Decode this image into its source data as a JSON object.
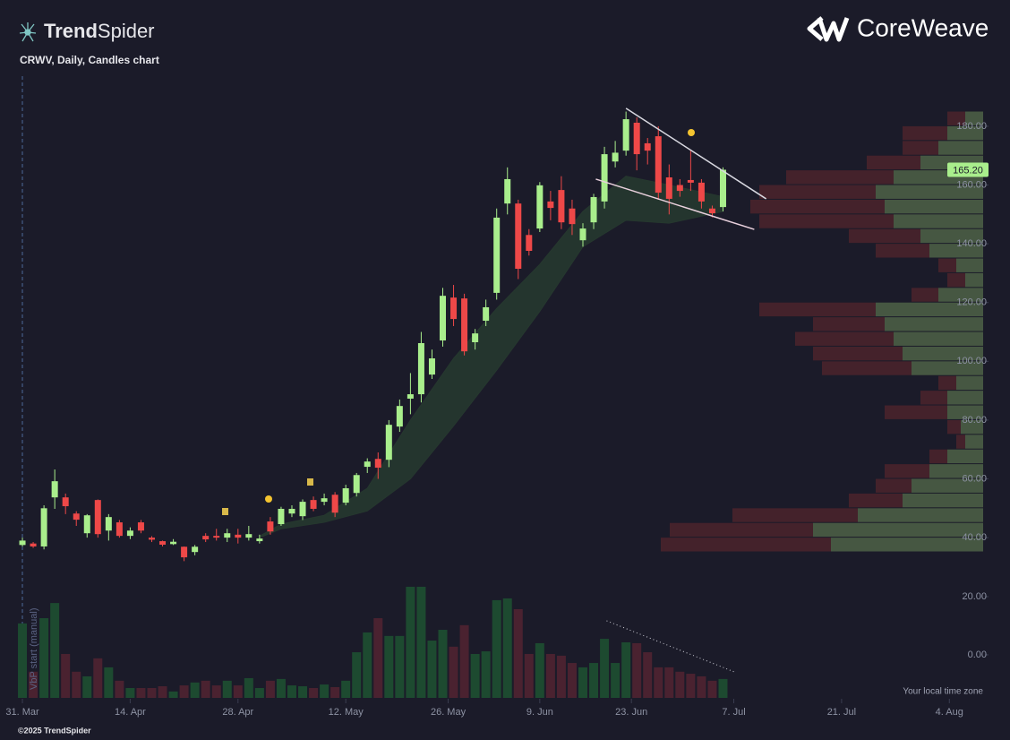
{
  "header": {
    "brand_bold": "Trend",
    "brand_light": "Spider",
    "chart_label": "CRWV, Daily, Candles chart",
    "company": "CoreWeave"
  },
  "footer": {
    "copyright": "©2025 TrendSpider",
    "timezone": "Your local time zone"
  },
  "chart_data": [
    {
      "type": "candlestick",
      "annotation": "VbP start (manual)",
      "up_color": "#a9ee8c",
      "down_color": "#ee4848",
      "x": [
        0,
        1,
        2,
        3,
        4,
        5,
        6,
        7,
        8,
        9,
        10,
        11,
        12,
        13,
        14,
        15,
        16,
        17,
        18,
        19,
        20,
        21,
        22,
        23,
        24,
        25,
        26,
        27,
        28,
        29,
        30,
        31,
        32,
        33,
        34,
        35,
        36,
        37,
        38,
        39,
        40,
        41,
        42,
        43,
        44,
        45,
        46,
        47,
        48,
        49,
        50,
        51,
        52,
        53,
        54,
        55,
        56,
        57,
        58,
        59,
        60,
        61,
        62,
        63,
        64,
        65
      ],
      "open": [
        37.5,
        38,
        37,
        53.7,
        53.7,
        48.2,
        41.5,
        52.8,
        42.4,
        45.2,
        40.6,
        45.2,
        40,
        38.8,
        37.8,
        36.9,
        35.1,
        40.6,
        40.6,
        40,
        41,
        40,
        38.8,
        45.5,
        44.6,
        48.2,
        47.3,
        52.8,
        52.2,
        54.6,
        51.9,
        55.2,
        64.1,
        66.8,
        66.5,
        77.8,
        87.3,
        88.8,
        95.5,
        107.1,
        121.7,
        121.4,
        106.5,
        113.8,
        123.3,
        153.7,
        153.7,
        143,
        145.2,
        154.4,
        158.3,
        152,
        141.2,
        147.3,
        154.4,
        168,
        171.7,
        181.2,
        174.2,
        176.6,
        162.6,
        160,
        161.7,
        160.8,
        152,
        152.5
      ],
      "high": [
        40,
        38.5,
        51,
        63.2,
        55,
        49,
        48,
        53,
        48,
        46,
        43.5,
        46,
        40.5,
        39,
        39.5,
        37,
        37.5,
        41.5,
        43,
        43,
        43,
        44,
        41,
        47,
        50.5,
        51,
        53,
        54,
        55,
        55.5,
        58,
        62,
        67,
        69,
        80,
        87,
        96,
        110,
        104,
        125,
        126,
        123,
        111,
        121,
        152,
        166,
        155,
        145,
        161,
        158,
        163,
        155,
        147,
        157,
        173,
        175,
        185,
        183,
        176,
        180,
        167,
        162,
        172,
        162,
        153,
        166
      ],
      "low": [
        37,
        36.5,
        36,
        49.8,
        48,
        44,
        40,
        40,
        39,
        40,
        39.5,
        41.5,
        38.5,
        37,
        37.5,
        32,
        34,
        38.5,
        39,
        38.5,
        38,
        39,
        38,
        41,
        44,
        47,
        46,
        49,
        51,
        47,
        51,
        54,
        62,
        60,
        64,
        76,
        82,
        86,
        94,
        105,
        112,
        102,
        104,
        112,
        121,
        150,
        128,
        136,
        144,
        148,
        145,
        143,
        139,
        145,
        152,
        166,
        170,
        165,
        167,
        155,
        150,
        156,
        158,
        152,
        149,
        151
      ],
      "close": [
        39,
        37,
        50,
        59.2,
        50.7,
        46.1,
        47.6,
        41.2,
        47,
        40.6,
        42.4,
        42.4,
        39.3,
        37.6,
        38.6,
        33.3,
        36.9,
        39.4,
        40,
        41.5,
        40,
        41.2,
        39.7,
        42.1,
        49.8,
        49.8,
        52.2,
        49.8,
        53.4,
        48.5,
        56.8,
        61.3,
        65.9,
        63.8,
        78.4,
        84.8,
        88.8,
        106.2,
        101,
        122.3,
        114.4,
        103.4,
        109.5,
        118.4,
        148.9,
        162,
        131.5,
        137.6,
        159.9,
        152.2,
        147.3,
        146.7,
        145.2,
        155.9,
        170.5,
        171,
        182.4,
        170.5,
        171.7,
        157.4,
        155.3,
        158,
        160.8,
        154.4,
        150.4,
        165.2
      ],
      "xlim": [
        -1,
        89.3
      ],
      "xticks": [
        {
          "value": 0,
          "label": "31. Mar"
        },
        {
          "value": 10,
          "label": "14. Apr"
        },
        {
          "value": 20,
          "label": "28. Apr"
        },
        {
          "value": 30,
          "label": "12. May"
        },
        {
          "value": 39.5,
          "label": "26. May"
        },
        {
          "value": 48,
          "label": "9. Jun"
        },
        {
          "value": 56.5,
          "label": "23. Jun"
        },
        {
          "value": 66,
          "label": "7. Jul"
        },
        {
          "value": 76,
          "label": "21. Jul"
        },
        {
          "value": 86,
          "label": "4. Aug"
        }
      ],
      "ylim": [
        31.5,
        194
      ],
      "yticks": [
        {
          "value": 40,
          "label": "40.00"
        },
        {
          "value": 60,
          "label": "60.00"
        },
        {
          "value": 80,
          "label": "80.00"
        },
        {
          "value": 100,
          "label": "100.00"
        },
        {
          "value": 120,
          "label": "120.00"
        },
        {
          "value": 140,
          "label": "140.00"
        },
        {
          "value": 160,
          "label": "160.00"
        },
        {
          "value": 180,
          "label": "180.00"
        }
      ],
      "last_price": {
        "value": 165.2,
        "label": "165.20"
      },
      "cloud": {
        "color": "#26382f",
        "x": [
          22,
          24,
          28,
          32,
          36,
          40,
          44,
          48,
          52,
          56,
          60,
          65
        ],
        "upper": [
          40.5,
          44.6,
          47.6,
          56.8,
          80,
          101,
          118,
          133,
          151,
          163,
          160,
          156
        ],
        "lower": [
          40,
          43,
          45.2,
          49.1,
          60,
          78,
          97,
          117,
          139,
          148,
          147,
          151
        ]
      },
      "trendlines": [
        {
          "color": "#d8d8e0",
          "x": [
            56,
            69
          ],
          "y": [
            186.1,
            155.3
          ]
        },
        {
          "color": "#e8d0dc",
          "x": [
            53.2,
            67.9
          ],
          "y": [
            162,
            144.9
          ]
        }
      ],
      "volume_profile": {
        "up_color": "#4d6147",
        "down_color": "#4b232b",
        "bins": [
          35,
          40,
          45,
          50,
          55,
          60,
          65,
          70,
          75,
          80,
          85,
          90,
          95,
          100,
          105,
          110,
          115,
          120,
          125,
          130,
          135,
          140,
          145,
          150,
          155,
          160,
          165,
          170,
          175,
          180,
          185
        ],
        "up": [
          170,
          190,
          140,
          90,
          80,
          60,
          40,
          20,
          25,
          40,
          40,
          30,
          80,
          90,
          100,
          110,
          120,
          50,
          20,
          30,
          60,
          70,
          100,
          110,
          120,
          100,
          70,
          50,
          40,
          20
        ],
        "down": [
          190,
          160,
          140,
          60,
          40,
          50,
          20,
          10,
          15,
          70,
          30,
          20,
          100,
          100,
          110,
          80,
          130,
          30,
          20,
          20,
          60,
          80,
          150,
          150,
          130,
          120,
          60,
          40,
          50,
          20
        ]
      }
    },
    {
      "type": "volume",
      "up_color": "#1d4a30",
      "down_color": "#4a2230",
      "values": [
        10.8,
        -5.8,
        12.6,
        17.8,
        0.3,
        -5.8,
        -7.4,
        -1.2,
        -4.3,
        -8.9,
        -11.4,
        -11.4,
        -11.4,
        -10.8,
        -12.6,
        -10.5,
        -9.5,
        -8.9,
        -10.5,
        -8.9,
        -10.5,
        -8,
        -11.4,
        -8.9,
        -8.3,
        -10.5,
        -10.8,
        -11.4,
        -10.2,
        -11.1,
        -8.9,
        0.9,
        7.7,
        12.6,
        6.5,
        6.5,
        23.4,
        23.4,
        4.9,
        8.6,
        2.8,
        10.2,
        0.3,
        1.2,
        18.8,
        19.4,
        15.7,
        0.3,
        4,
        0.3,
        -0.3,
        -2.8,
        -4.3,
        -2.8,
        5.5,
        -2.8,
        4.3,
        4,
        0.9,
        -4.3,
        -4.3,
        -5.8,
        -6.5,
        -7.4,
        -8.9,
        -8.3
      ],
      "ylim": [
        -14.8,
        24
      ],
      "yticks": [
        {
          "value": 0,
          "label": "0.00"
        },
        {
          "value": 20,
          "label": "20.00"
        }
      ],
      "trendline": {
        "color": "#cfcfd8",
        "x": [
          54.2,
          66
        ],
        "y": [
          11.7,
          -5.8
        ]
      }
    }
  ]
}
